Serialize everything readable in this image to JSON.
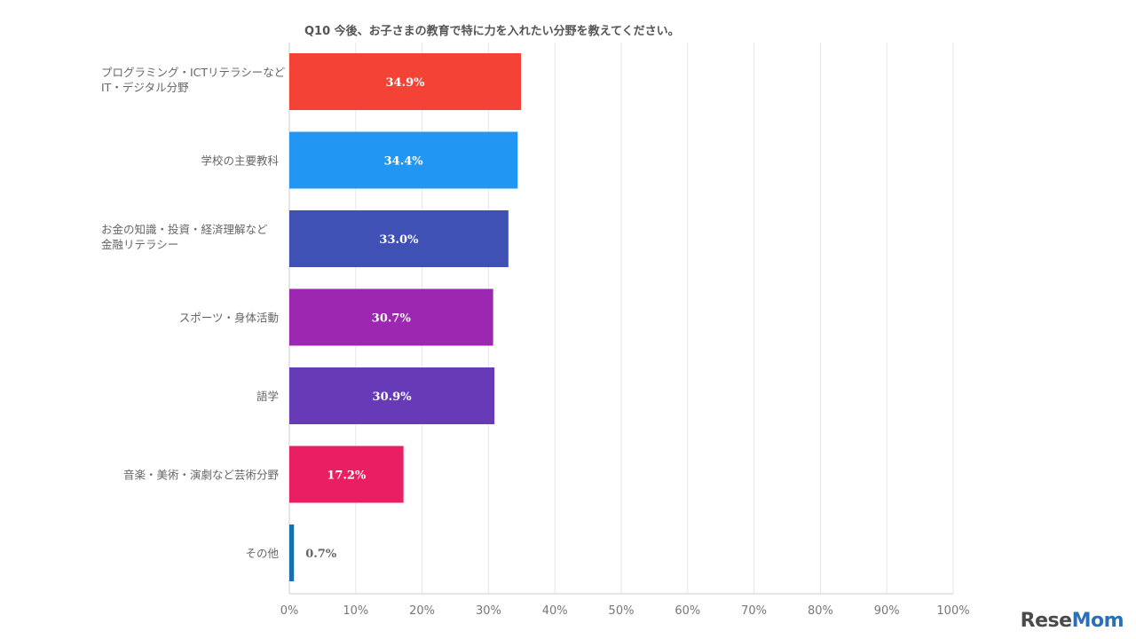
{
  "chart_data": {
    "type": "bar",
    "orientation": "horizontal",
    "title": "Q10 今後、お子さまの教育で特に力を入れたい分野を教えてください。",
    "categories": [
      [
        "プログラミング・ICTリテラシーなど",
        "IT・デジタル分野"
      ],
      [
        "学校の主要教科"
      ],
      [
        "お金の知識・投資・経済理解など",
        "金融リテラシー"
      ],
      [
        "スポーツ・身体活動"
      ],
      [
        "語学"
      ],
      [
        "音楽・美術・演劇など芸術分野"
      ],
      [
        "その他"
      ]
    ],
    "values": [
      34.9,
      34.4,
      33.0,
      30.7,
      30.9,
      17.2,
      0.7
    ],
    "value_labels": [
      "34.9%",
      "34.4%",
      "33.0%",
      "30.7%",
      "30.9%",
      "17.2%",
      "0.7%"
    ],
    "colors": [
      "#f44336",
      "#2196f3",
      "#3f51b5",
      "#9c27b0",
      "#673ab7",
      "#e91e63",
      "#1a6fb0"
    ],
    "xlim": [
      0,
      100
    ],
    "xticks": [
      0,
      10,
      20,
      30,
      40,
      50,
      60,
      70,
      80,
      90,
      100
    ],
    "xtick_labels": [
      "0%",
      "10%",
      "20%",
      "30%",
      "40%",
      "50%",
      "60%",
      "70%",
      "80%",
      "90%",
      "100%"
    ],
    "grid": true,
    "legend": "none"
  },
  "watermark": {
    "text_main": "Rese",
    "text_accent": "Mom"
  }
}
